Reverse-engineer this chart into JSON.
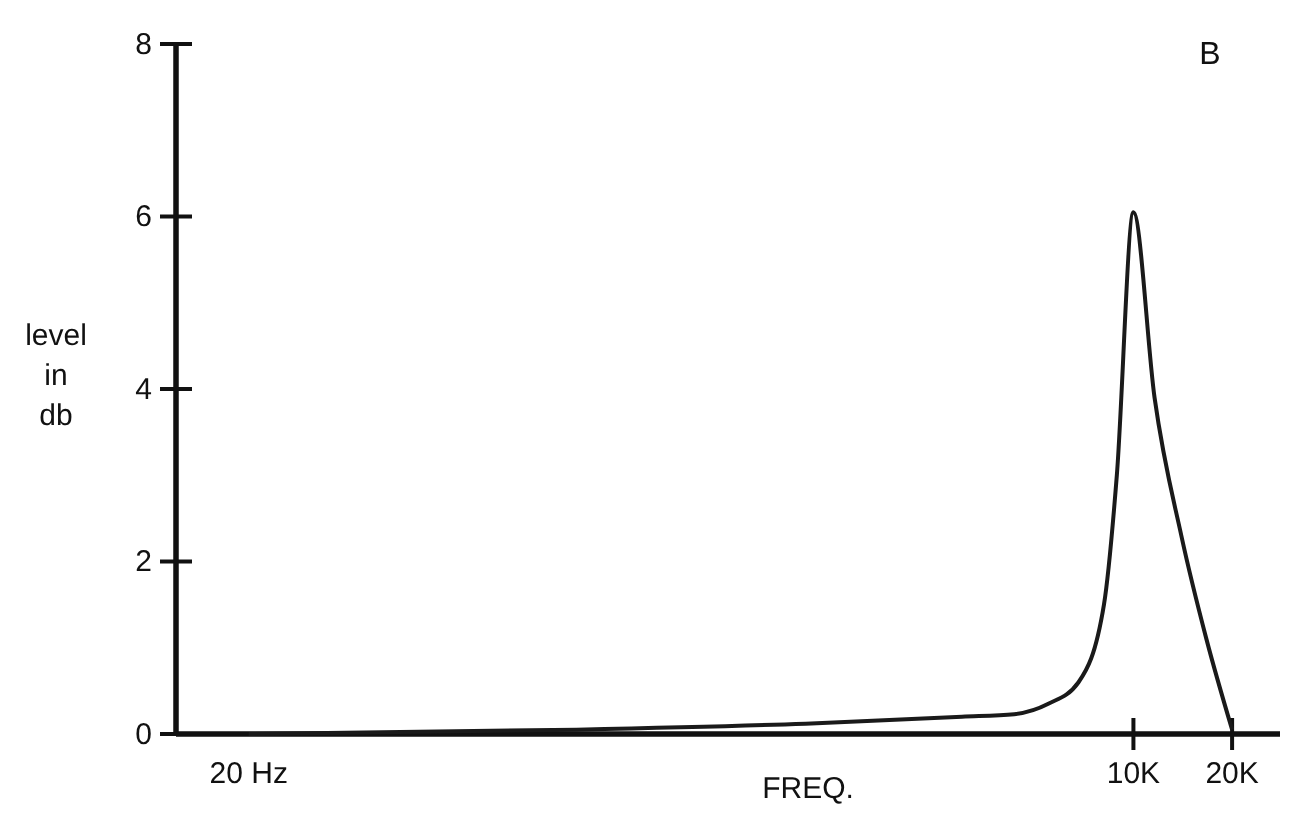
{
  "chart_data": {
    "type": "line",
    "xlabel": "FREQ.",
    "ylabel": "level in db",
    "annotations": [
      "B"
    ],
    "log": "x",
    "xlim": [
      12,
      28000
    ],
    "xticks": [
      {
        "value": 20,
        "label": "20 Hz"
      },
      {
        "value": 10000,
        "label": "10K"
      },
      {
        "value": 20000,
        "label": "20K"
      }
    ],
    "ylim": [
      0,
      8
    ],
    "yticks": [
      0,
      2,
      4,
      6,
      8
    ],
    "grid": false,
    "marker": "none",
    "line_style": "solid",
    "series": [
      {
        "color": "#1a1a1a",
        "x": [
          20,
          200,
          1000,
          3000,
          4330,
          5500,
          6800,
          8130,
          8900,
          10000,
          11600,
          14000,
          16700,
          20000
        ],
        "values": [
          0,
          0.05,
          0.12,
          0.2,
          0.23,
          0.35,
          0.6,
          1.5,
          3,
          6.05,
          3.9,
          2.3,
          1.1,
          0.05
        ]
      }
    ]
  }
}
